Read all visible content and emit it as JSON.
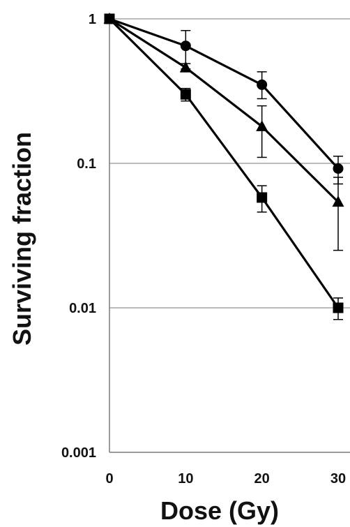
{
  "chart_data": {
    "type": "line",
    "title": "",
    "xlabel": "Dose (Gy)",
    "ylabel": "Surviving fraction",
    "x": [
      0,
      10,
      20,
      30
    ],
    "xlim": [
      0,
      30
    ],
    "ylim": [
      0.001,
      1
    ],
    "yscale": "log",
    "grid": "horizontal",
    "legend": "none",
    "xticks": [
      {
        "value": 0,
        "label": "0"
      },
      {
        "value": 10,
        "label": "10"
      },
      {
        "value": 20,
        "label": "20"
      },
      {
        "value": 30,
        "label": "30"
      }
    ],
    "yticks": [
      {
        "value": 1,
        "label": "1"
      },
      {
        "value": 0.1,
        "label": "0.1"
      },
      {
        "value": 0.01,
        "label": "0.01"
      },
      {
        "value": 0.001,
        "label": "0.001"
      }
    ],
    "series": [
      {
        "marker": "circle",
        "color": "#000000",
        "values": [
          1,
          0.65,
          0.35,
          0.092
        ],
        "error_low": [
          0,
          0.2,
          0.07,
          0.02
        ],
        "error_high": [
          0,
          0.18,
          0.08,
          0.02
        ]
      },
      {
        "marker": "triangle",
        "color": "#000000",
        "values": [
          1,
          0.46,
          0.18,
          0.054
        ],
        "error_low": [
          0,
          0.03,
          0.07,
          0.029
        ],
        "error_high": [
          0,
          0.03,
          0.07,
          0.026
        ]
      },
      {
        "marker": "square",
        "color": "#000000",
        "values": [
          1,
          0.3,
          0.058,
          0.01
        ],
        "error_low": [
          0,
          0.03,
          0.012,
          0.0017
        ],
        "error_high": [
          0,
          0.03,
          0.012,
          0.0017
        ]
      }
    ]
  }
}
